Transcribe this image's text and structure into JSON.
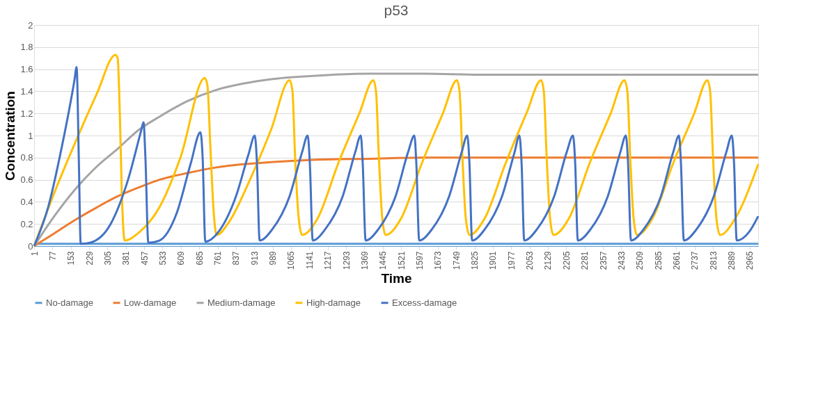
{
  "chart_data": {
    "type": "line",
    "title": "p53",
    "xlabel": "Time",
    "ylabel": "Concentration",
    "xlim": [
      1,
      3000
    ],
    "xticks": [
      1,
      77,
      153,
      229,
      305,
      381,
      457,
      533,
      609,
      685,
      761,
      837,
      913,
      989,
      1065,
      1141,
      1217,
      1293,
      1369,
      1445,
      1521,
      1597,
      1673,
      1749,
      1825,
      1901,
      1977,
      2053,
      2129,
      2205,
      2281,
      2357,
      2433,
      2509,
      2585,
      2661,
      2737,
      2813,
      2889,
      2965
    ],
    "ylim": [
      0,
      2
    ],
    "yticks": [
      0,
      0.2,
      0.4,
      0.6,
      0.8,
      1,
      1.2,
      1.4,
      1.6,
      1.8,
      2
    ],
    "grid": "y",
    "legend": "bottom",
    "series": [
      {
        "name": "No-damage",
        "color": "#5b9bd5",
        "x": [
          1,
          3000
        ],
        "values": [
          0.02,
          0.02
        ]
      },
      {
        "name": "Low-damage",
        "color": "#ed7d31",
        "x": [
          1,
          88,
          174,
          261,
          347,
          434,
          520,
          635,
          751,
          866,
          982,
          1155,
          1386,
          1616,
          1847,
          2250,
          3000
        ],
        "values": [
          0,
          0.12,
          0.24,
          0.35,
          0.45,
          0.53,
          0.6,
          0.66,
          0.71,
          0.74,
          0.76,
          0.78,
          0.79,
          0.8,
          0.8,
          0.8,
          0.8
        ]
      },
      {
        "name": "Medium-damage",
        "color": "#a5a5a5",
        "x": [
          1,
          88,
          174,
          261,
          347,
          434,
          520,
          635,
          751,
          866,
          982,
          1155,
          1386,
          1616,
          1847,
          2250,
          3000
        ],
        "values": [
          0,
          0.28,
          0.52,
          0.72,
          0.88,
          1.05,
          1.17,
          1.31,
          1.41,
          1.47,
          1.51,
          1.54,
          1.56,
          1.56,
          1.55,
          1.55,
          1.55
        ]
      },
      {
        "name": "High-damage",
        "color": "#ffc000",
        "x": [
          1,
          88,
          174,
          261,
          338,
          347,
          356,
          364,
          376,
          434,
          520,
          607,
          708,
          719,
          731,
          745,
          757,
          809,
          895,
          982,
          1059,
          1071,
          1082,
          1097,
          1111,
          1175,
          1261,
          1348,
          1406,
          1417,
          1429,
          1443,
          1457,
          1521,
          1607,
          1694,
          1752,
          1763,
          1775,
          1789,
          1804,
          1867,
          1954,
          2040,
          2101,
          2112,
          2124,
          2138,
          2152,
          2216,
          2302,
          2389,
          2446,
          2458,
          2470,
          2484,
          2498,
          2562,
          2648,
          2735,
          2790,
          2801,
          2813,
          2827,
          2842,
          2905,
          3000
        ],
        "values": [
          0,
          0.5,
          0.95,
          1.38,
          1.73,
          1.7,
          1.2,
          0.5,
          0.05,
          0.12,
          0.35,
          0.8,
          1.52,
          1.45,
          0.9,
          0.3,
          0.1,
          0.22,
          0.6,
          1.05,
          1.5,
          1.4,
          0.8,
          0.25,
          0.1,
          0.25,
          0.75,
          1.2,
          1.5,
          1.4,
          0.8,
          0.25,
          0.1,
          0.25,
          0.75,
          1.2,
          1.5,
          1.4,
          0.8,
          0.25,
          0.1,
          0.25,
          0.75,
          1.2,
          1.5,
          1.4,
          0.8,
          0.25,
          0.1,
          0.25,
          0.75,
          1.2,
          1.5,
          1.4,
          0.8,
          0.25,
          0.1,
          0.25,
          0.75,
          1.2,
          1.5,
          1.4,
          0.8,
          0.25,
          0.1,
          0.25,
          0.74
        ]
      },
      {
        "name": "Excess-damage",
        "color": "#4472c4",
        "x": [
          1,
          59,
          116,
          168,
          177,
          186,
          194,
          232,
          318,
          390,
          445,
          454,
          462,
          474,
          520,
          592,
          650,
          690,
          699,
          710,
          765,
          837,
          889,
          915,
          924,
          935,
          987,
          1059,
          1111,
          1134,
          1143,
          1155,
          1206,
          1279,
          1331,
          1354,
          1362,
          1374,
          1426,
          1498,
          1550,
          1576,
          1584,
          1596,
          1648,
          1720,
          1772,
          1795,
          1804,
          1815,
          1867,
          1939,
          1991,
          2011,
          2020,
          2031,
          2083,
          2155,
          2207,
          2233,
          2242,
          2253,
          2305,
          2377,
          2429,
          2452,
          2461,
          2473,
          2525,
          2597,
          2648,
          2672,
          2680,
          2692,
          2744,
          2816,
          2868,
          2891,
          2900,
          2911,
          2963,
          3000
        ],
        "values": [
          0,
          0.35,
          0.9,
          1.5,
          1.62,
          0.8,
          0.02,
          0.03,
          0.2,
          0.6,
          1.05,
          1.12,
          0.8,
          0.03,
          0.05,
          0.3,
          0.75,
          1.03,
          0.8,
          0.04,
          0.13,
          0.45,
          0.83,
          1.0,
          0.75,
          0.05,
          0.15,
          0.45,
          0.85,
          1.0,
          0.75,
          0.05,
          0.15,
          0.45,
          0.85,
          1.0,
          0.75,
          0.05,
          0.15,
          0.45,
          0.85,
          1.0,
          0.75,
          0.05,
          0.15,
          0.45,
          0.85,
          1.0,
          0.75,
          0.05,
          0.15,
          0.45,
          0.85,
          1.0,
          0.75,
          0.05,
          0.15,
          0.45,
          0.85,
          1.0,
          0.75,
          0.05,
          0.15,
          0.45,
          0.85,
          1.0,
          0.75,
          0.05,
          0.15,
          0.45,
          0.85,
          1.0,
          0.75,
          0.05,
          0.15,
          0.45,
          0.85,
          1.0,
          0.75,
          0.05,
          0.13,
          0.27
        ]
      }
    ]
  }
}
